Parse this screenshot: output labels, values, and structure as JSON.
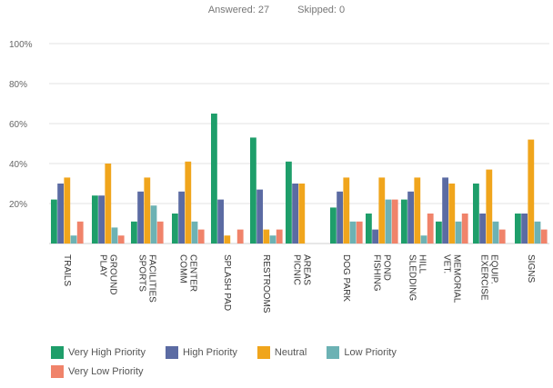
{
  "header": {
    "answered_label": "Answered:",
    "answered_value": "27",
    "skipped_label": "Skipped:",
    "skipped_value": "0"
  },
  "chart_data": {
    "type": "bar",
    "ylim": [
      0,
      100
    ],
    "yticks": [
      "100%",
      "80%",
      "60%",
      "40%",
      "20%"
    ],
    "ytick_values": [
      100,
      80,
      60,
      40,
      20
    ],
    "grid": true,
    "legend_position": "bottom",
    "categories": [
      "TRAILS",
      "PLAY GROUND",
      "SPORTS FACILITIES",
      "COMM CENTER",
      "SPLASH PAD",
      "RESTROOMS",
      "PICNIC AREAS",
      "DOG PARK",
      "FISHING POND",
      "SLEDDING HILL",
      "VET. MEMORIAL",
      "EXERCISE EQUIP.",
      "SIGNS"
    ],
    "category_lines": [
      [
        "TRAILS"
      ],
      [
        "PLAY",
        "GROUND"
      ],
      [
        "SPORTS",
        "FACILITIES"
      ],
      [
        "COMM",
        "CENTER"
      ],
      [
        "SPLASH PAD"
      ],
      [
        "RESTROOMS"
      ],
      [
        "PICNIC",
        "AREAS"
      ],
      [
        "DOG PARK"
      ],
      [
        "FISHING",
        "POND"
      ],
      [
        "SLEDDING",
        "HILL"
      ],
      [
        "VET.",
        "MEMORIAL"
      ],
      [
        "EXERCISE",
        "EQUIP."
      ],
      [
        "SIGNS"
      ]
    ],
    "series": [
      {
        "name": "Very High Priority",
        "color": "#1e9e6a",
        "values": [
          22,
          24,
          11,
          15,
          65,
          53,
          41,
          18,
          15,
          22,
          11,
          30,
          15
        ]
      },
      {
        "name": "High Priority",
        "color": "#5b6ba3",
        "values": [
          30,
          24,
          26,
          26,
          22,
          27,
          30,
          26,
          7,
          26,
          33,
          15,
          15
        ]
      },
      {
        "name": "Neutral",
        "color": "#f0a51c",
        "values": [
          33,
          40,
          33,
          41,
          4,
          7,
          30,
          33,
          33,
          33,
          30,
          37,
          52
        ]
      },
      {
        "name": "Low Priority",
        "color": "#6cb2b4",
        "values": [
          4,
          8,
          19,
          11,
          0,
          4,
          0,
          11,
          22,
          4,
          11,
          11,
          11
        ]
      },
      {
        "name": "Very Low Priority",
        "color": "#f0836a",
        "values": [
          11,
          4,
          11,
          7,
          7,
          7,
          0,
          11,
          22,
          15,
          15,
          7,
          7
        ]
      }
    ]
  }
}
